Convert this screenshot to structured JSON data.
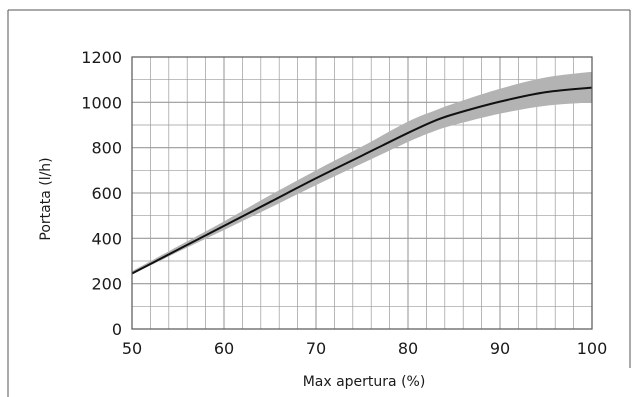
{
  "chart_data": {
    "type": "line",
    "title": "",
    "xlabel": "Max apertura (%)",
    "ylabel": "Portata (l/h)",
    "xlim": [
      50,
      100
    ],
    "ylim": [
      0,
      1200
    ],
    "x_ticks": [
      50,
      60,
      70,
      80,
      90,
      100
    ],
    "y_ticks": [
      0,
      200,
      400,
      600,
      800,
      1000,
      1200
    ],
    "grid": true,
    "x_minor_step": 2,
    "y_minor_step": 100,
    "colors": {
      "line": "#111111",
      "band": "#b3b3b3",
      "grid": "#9a9a9a",
      "frame": "#555555"
    },
    "series": [
      {
        "x": [
          50,
          55,
          60,
          65,
          70,
          75,
          80,
          83,
          85,
          90,
          95,
          100
        ],
        "values": [
          245,
          350,
          455,
          560,
          665,
          765,
          865,
          920,
          948,
          1003,
          1045,
          1065
        ],
        "upper": [
          255,
          365,
          475,
          590,
          700,
          805,
          915,
          965,
          995,
          1060,
          1110,
          1135
        ],
        "lower": [
          240,
          340,
          437,
          535,
          635,
          730,
          825,
          875,
          900,
          950,
          985,
          1000
        ]
      }
    ]
  }
}
